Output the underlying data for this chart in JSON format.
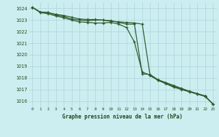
{
  "title": "Graphe pression niveau de la mer (hPa)",
  "background_color": "#cceef0",
  "grid_color": "#b0d8dc",
  "line_color": "#2d5a2d",
  "x_min": 0,
  "x_max": 23,
  "y_min": 1015.5,
  "y_max": 1024.5,
  "y_ticks": [
    1016,
    1017,
    1018,
    1019,
    1020,
    1021,
    1022,
    1023,
    1024
  ],
  "x_labels": [
    "0",
    "1",
    "2",
    "3",
    "4",
    "5",
    "6",
    "7",
    "8",
    "9",
    "10",
    "11",
    "12",
    "13",
    "14",
    "15",
    "16",
    "17",
    "18",
    "19",
    "20",
    "21",
    "22",
    "23"
  ],
  "series1": [
    1024.1,
    1023.7,
    1023.65,
    1023.45,
    1023.3,
    1023.1,
    1023.0,
    1022.95,
    1023.0,
    1023.0,
    1022.95,
    1022.8,
    1022.65,
    1022.65,
    1018.35,
    1018.3,
    1017.85,
    1017.6,
    1017.35,
    1017.1,
    1016.85,
    1016.65,
    1016.45,
    1015.75
  ],
  "series2": [
    1024.1,
    1023.7,
    1023.65,
    1023.5,
    1023.4,
    1023.25,
    1023.1,
    1023.05,
    1023.05,
    1023.0,
    1022.9,
    1022.85,
    1022.8,
    1022.75,
    1022.65,
    1018.2,
    1017.8,
    1017.5,
    1017.2,
    1017.0,
    1016.8,
    1016.6,
    1016.4,
    1015.75
  ],
  "series3": [
    1024.1,
    1023.65,
    1023.55,
    1023.35,
    1023.2,
    1023.0,
    1022.85,
    1022.8,
    1022.75,
    1022.75,
    1022.8,
    1022.65,
    1022.35,
    1021.1,
    1018.5,
    1018.25,
    1017.8,
    1017.55,
    1017.28,
    1017.05,
    1016.83,
    1016.63,
    1016.43,
    1015.75
  ]
}
